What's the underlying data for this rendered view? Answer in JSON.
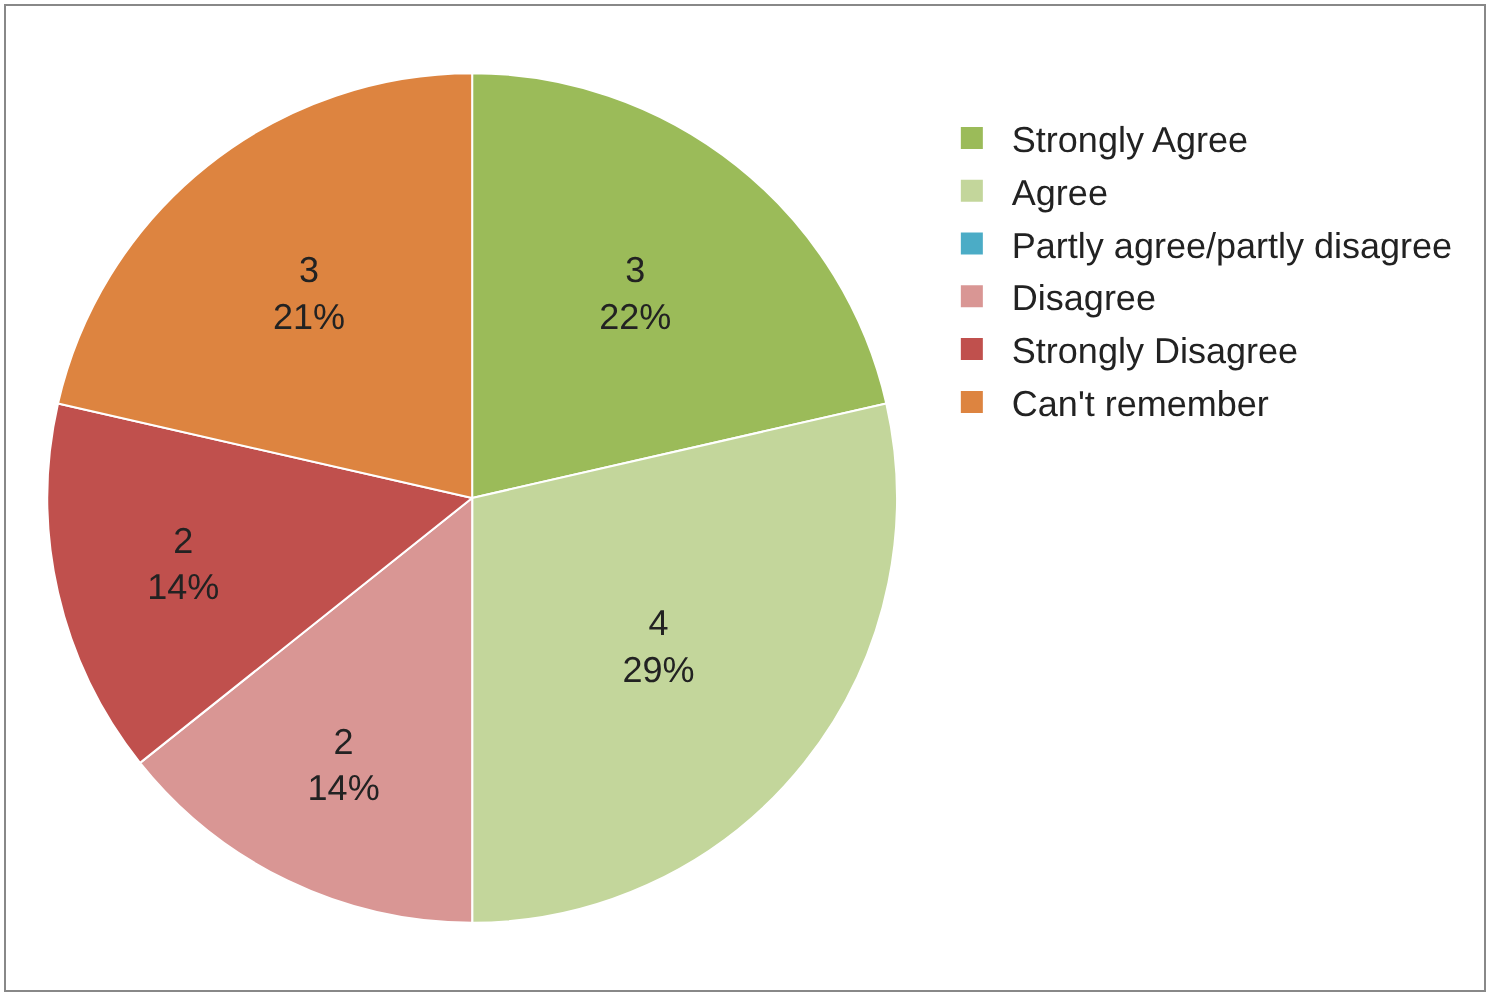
{
  "chart_data": {
    "type": "pie",
    "categories": [
      "Strongly Agree",
      "Agree",
      "Partly agree/partly disagree",
      "Disagree",
      "Strongly Disagree",
      "Can't remember"
    ],
    "values": [
      3,
      4,
      0,
      2,
      2,
      3
    ],
    "colors": [
      "#9bbb59",
      "#c3d69b",
      "#4bacc6",
      "#d99694",
      "#c0504d",
      "#dd8440"
    ],
    "value_labels": [
      "3\n22%",
      "4\n29%",
      null,
      "2\n14%",
      "2\n14%",
      "3\n21%"
    ],
    "legend": "right"
  }
}
